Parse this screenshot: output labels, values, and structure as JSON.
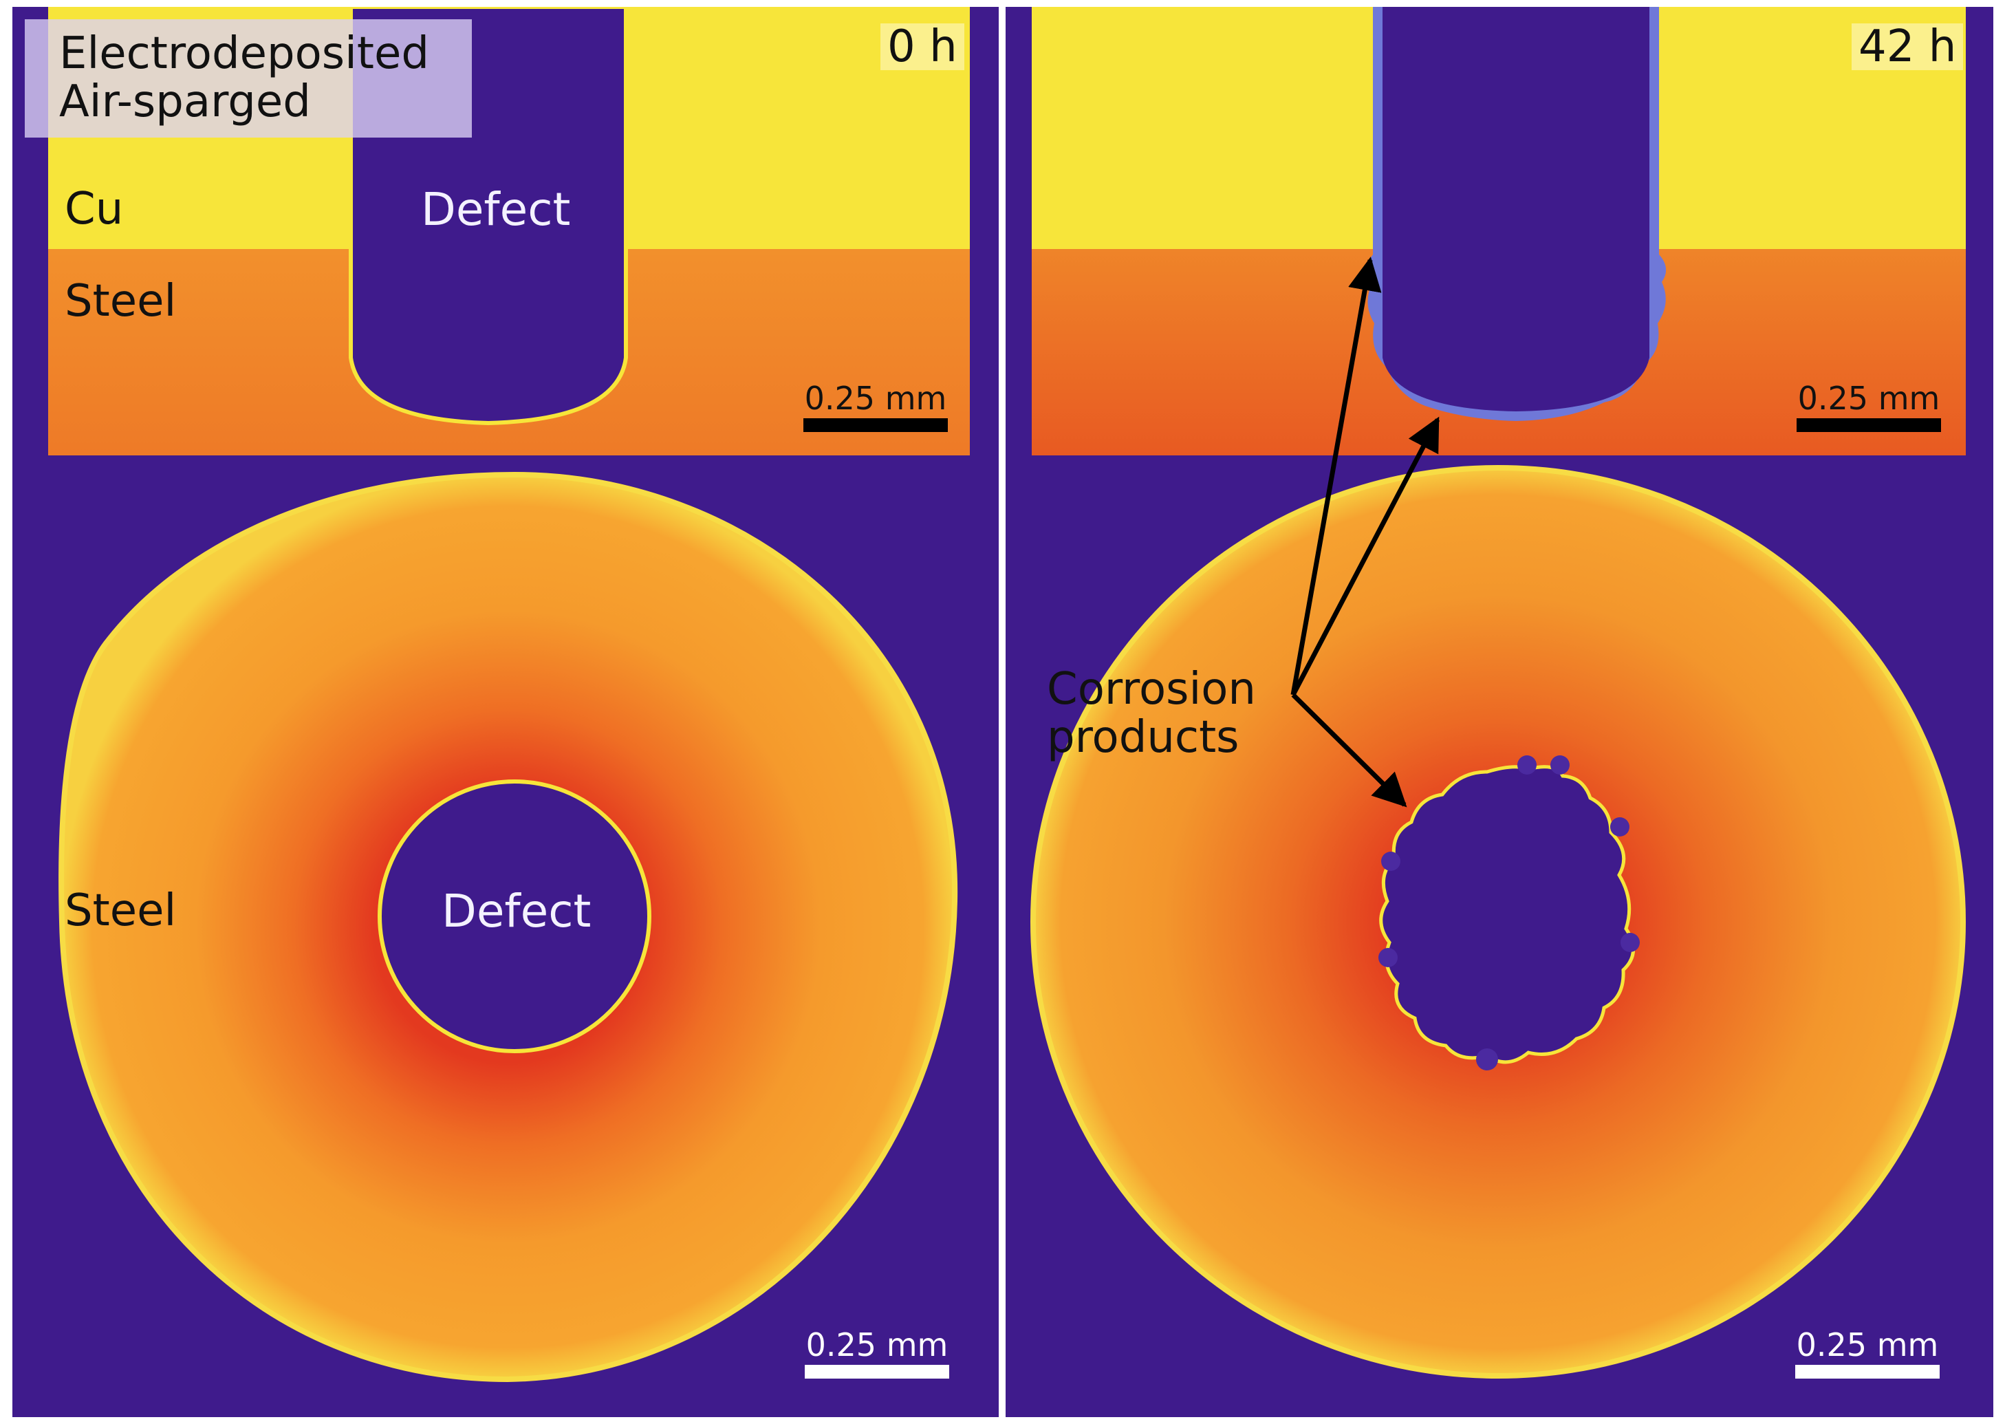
{
  "figure": {
    "left_panel": {
      "condition_line1": "Electrodeposited",
      "condition_line2": "Air-sparged",
      "time": "0 h",
      "top_labels": {
        "cu": "Cu",
        "steel": "Steel",
        "defect": "Defect"
      },
      "bottom_labels": {
        "steel": "Steel",
        "defect": "Defect"
      },
      "scale_top": "0.25 mm",
      "scale_bottom": "0.25 mm"
    },
    "right_panel": {
      "time": "42 h",
      "annotation_line1": "Corrosion",
      "annotation_line2": "products",
      "scale_top": "0.25 mm",
      "scale_bottom": "0.25 mm"
    }
  },
  "colors": {
    "background": "#3f1b8c",
    "copper": "#f7e53a",
    "steel": "#f08a2a",
    "steel_hot": "#e3391f",
    "corrosion_products": "#6f78d8",
    "scalebar_top": "#000000",
    "scalebar_bottom": "#ffffff"
  }
}
